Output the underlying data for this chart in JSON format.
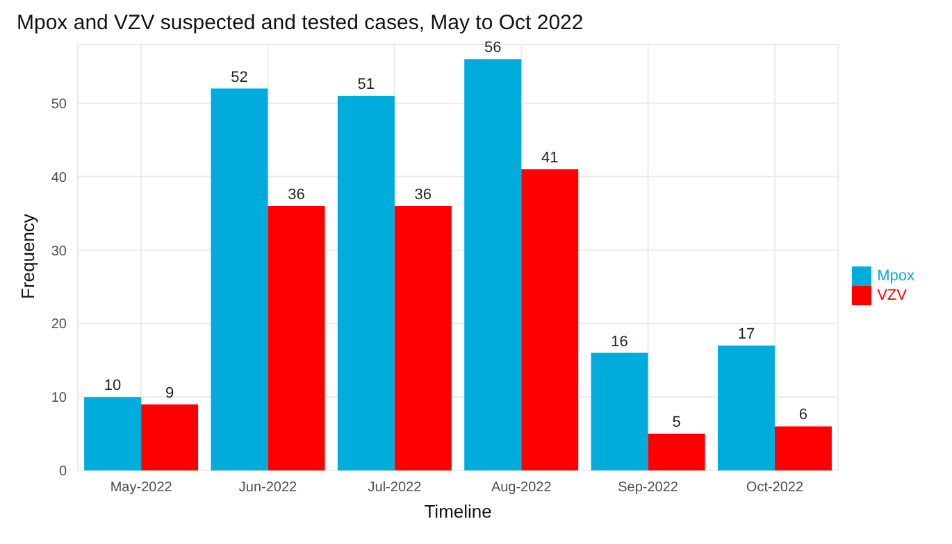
{
  "chart_data": {
    "type": "bar",
    "title": "Mpox and VZV suspected and tested cases, May to Oct 2022",
    "xlabel": "Timeline",
    "ylabel": "Frequency",
    "categories": [
      "May-2022",
      "Jun-2022",
      "Jul-2022",
      "Aug-2022",
      "Sep-2022",
      "Oct-2022"
    ],
    "series": [
      {
        "name": "Mpox",
        "color": "#00acdb",
        "values": [
          10,
          52,
          51,
          56,
          16,
          17
        ]
      },
      {
        "name": "VZV",
        "color": "#ff0000",
        "values": [
          9,
          36,
          36,
          41,
          5,
          6
        ]
      }
    ],
    "ylim": [
      0,
      58
    ],
    "yticks": [
      0,
      10,
      20,
      30,
      40,
      50
    ],
    "grid": true,
    "legend": "right",
    "data_labels": true
  }
}
